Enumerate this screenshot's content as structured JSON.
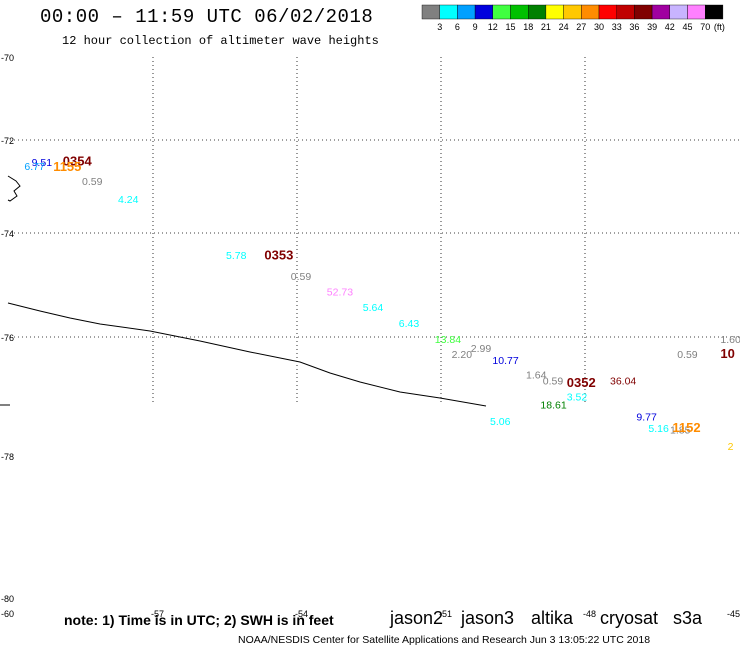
{
  "header": {
    "title": "00:00 – 11:59 UTC 06/02/2018",
    "subtitle": "12 hour collection of altimeter wave heights"
  },
  "legend": {
    "unit": "(ft)",
    "bins": [
      {
        "label": "3",
        "color": "#808080"
      },
      {
        "label": "6",
        "color": "#00ffff"
      },
      {
        "label": "9",
        "color": "#00a0ff"
      },
      {
        "label": "12",
        "color": "#0000dd"
      },
      {
        "label": "15",
        "color": "#40ff40"
      },
      {
        "label": "18",
        "color": "#00c000"
      },
      {
        "label": "21",
        "color": "#008000"
      },
      {
        "label": "24",
        "color": "#ffff00"
      },
      {
        "label": "27",
        "color": "#ffc800"
      },
      {
        "label": "30",
        "color": "#ff8c00"
      },
      {
        "label": "33",
        "color": "#ff0000"
      },
      {
        "label": "36",
        "color": "#c00000"
      },
      {
        "label": "39",
        "color": "#800000"
      },
      {
        "label": "42",
        "color": "#a000a0"
      },
      {
        "label": "45",
        "color": "#c8b4ff"
      },
      {
        "label": "70",
        "color": "#ff80ff"
      },
      {
        "label": "",
        "color": "#000000"
      }
    ]
  },
  "map": {
    "lat_ticks": [
      {
        "label": "-70",
        "lat": -70
      },
      {
        "label": "-72",
        "lat": -72
      },
      {
        "label": "-74",
        "lat": -74
      },
      {
        "label": "-76",
        "lat": -76
      },
      {
        "label": "-78",
        "lat": -78
      },
      {
        "label": "-80",
        "lat": -80
      }
    ],
    "lon_ticks": [
      {
        "label": "-57",
        "lon": -57
      },
      {
        "label": "-54",
        "lon": -54
      },
      {
        "label": "-51",
        "lon": -51
      },
      {
        "label": "-48",
        "lon": -48
      },
      {
        "label": "-45",
        "lon": -45
      }
    ],
    "bottom_left_label": "-60",
    "observations": [
      {
        "text": "9.51",
        "color": "#0000dd",
        "lon": -59.55,
        "lat": -72.56
      },
      {
        "text": "0354",
        "color": "#800000",
        "lon": -58.9,
        "lat": -72.55,
        "bold": true
      },
      {
        "text": "6.77",
        "color": "#00a0ff",
        "lon": -59.7,
        "lat": -72.65
      },
      {
        "text": "1155",
        "color": "#ff8c00",
        "lon": -59.1,
        "lat": -72.67,
        "bold": true
      },
      {
        "text": "0.59",
        "color": "#808080",
        "lon": -58.5,
        "lat": -72.97
      },
      {
        "text": "4.24",
        "color": "#00ffff",
        "lon": -57.75,
        "lat": -73.35
      },
      {
        "text": "5.78",
        "color": "#00ffff",
        "lon": -55.5,
        "lat": -74.5
      },
      {
        "text": "0353",
        "color": "#800000",
        "lon": -54.7,
        "lat": -74.51,
        "bold": true
      },
      {
        "text": "0.59",
        "color": "#808080",
        "lon": -54.15,
        "lat": -74.9
      },
      {
        "text": "52.73",
        "color": "#ff80ff",
        "lon": -53.4,
        "lat": -75.2
      },
      {
        "text": "5.64",
        "color": "#00ffff",
        "lon": -52.65,
        "lat": -75.5
      },
      {
        "text": "6.43",
        "color": "#00ffff",
        "lon": -51.9,
        "lat": -75.81
      },
      {
        "text": "13.84",
        "color": "#40ff40",
        "lon": -51.15,
        "lat": -76.1
      },
      {
        "text": "2.20",
        "color": "#808080",
        "lon": -50.8,
        "lat": -76.35
      },
      {
        "text": "2.99",
        "color": "#808080",
        "lon": -50.4,
        "lat": -76.25
      },
      {
        "text": "10.77",
        "color": "#0000dd",
        "lon": -49.95,
        "lat": -76.45
      },
      {
        "text": "1.64",
        "color": "#808080",
        "lon": -49.25,
        "lat": -76.7
      },
      {
        "text": "0.59",
        "color": "#808080",
        "lon": -48.9,
        "lat": -76.8
      },
      {
        "text": "0352",
        "color": "#800000",
        "lon": -48.4,
        "lat": -76.84,
        "bold": true
      },
      {
        "text": "36.04",
        "color": "#800000",
        "lon": -47.5,
        "lat": -76.8
      },
      {
        "text": "3.52",
        "color": "#00ffff",
        "lon": -48.4,
        "lat": -77.07
      },
      {
        "text": "18.61",
        "color": "#008000",
        "lon": -48.95,
        "lat": -77.2
      },
      {
        "text": "5.06",
        "color": "#00ffff",
        "lon": -50.0,
        "lat": -77.48
      },
      {
        "text": "9.77",
        "color": "#0000dd",
        "lon": -46.95,
        "lat": -77.4
      },
      {
        "text": "5.16",
        "color": "#00ffff",
        "lon": -46.7,
        "lat": -77.6
      },
      {
        "text": "1.85",
        "color": "#808080",
        "lon": -46.25,
        "lat": -77.62
      },
      {
        "text": "1152",
        "color": "#ff8c00",
        "lon": -46.2,
        "lat": -77.6,
        "bold": true
      },
      {
        "text": "0.59",
        "color": "#808080",
        "lon": -46.1,
        "lat": -76.35
      },
      {
        "text": "1.60",
        "color": "#808080",
        "lon": -45.2,
        "lat": -76.1
      },
      {
        "text": "10",
        "color": "#800000",
        "lon": -45.2,
        "lat": -76.35,
        "bold": true
      },
      {
        "text": "2",
        "color": "#ffc800",
        "lon": -45.05,
        "lat": -77.9
      }
    ]
  },
  "footer": {
    "note": "note: 1) Time is in UTC; 2) SWH is in feet",
    "credit": "NOAA/NESDIS Center for Satellite Applications and Research    Jun  3 13:05:22 UTC 2018",
    "satellites": [
      {
        "name": "jason2",
        "color": "#0000cc"
      },
      {
        "name": "jason3",
        "color": "#008000"
      },
      {
        "name": "altika",
        "color": "#ff8c00"
      },
      {
        "name": "cryosat",
        "color": "#cc0000"
      },
      {
        "name": "s3a",
        "color": "#800000"
      }
    ]
  }
}
